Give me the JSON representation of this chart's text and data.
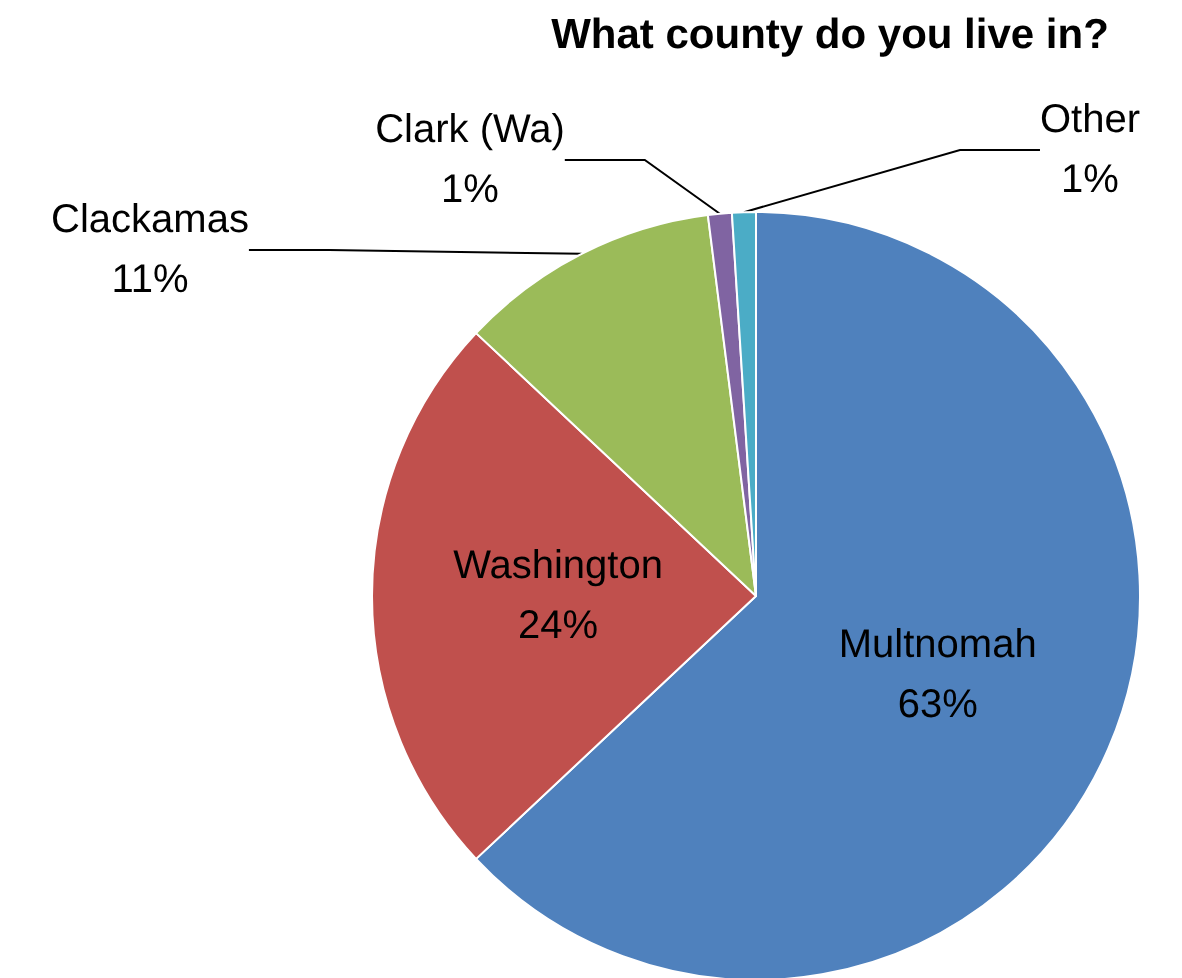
{
  "chart_data": {
    "type": "pie",
    "title": "What county do you live in?",
    "categories": [
      "Multnomah",
      "Washington",
      "Clackamas",
      "Clark (Wa)",
      "Other"
    ],
    "values": [
      63,
      24,
      11,
      1,
      1
    ],
    "value_labels": [
      "63%",
      "24%",
      "11%",
      "1%",
      "1%"
    ],
    "colors": [
      "#4f81bd",
      "#c0504d",
      "#9bbb59",
      "#8064a2",
      "#4bacc6"
    ],
    "legend": false
  }
}
